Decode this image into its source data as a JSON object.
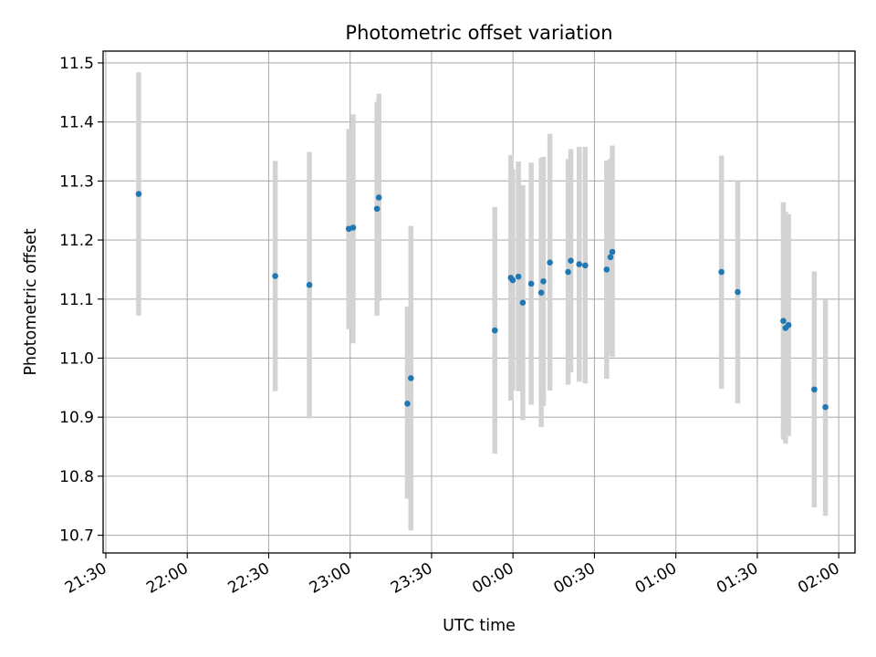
{
  "chart_data": {
    "type": "scatter",
    "title": "Photometric offset variation",
    "xlabel": "UTC time",
    "ylabel": "Photometric offset",
    "x_unit": "minutes since 21:30 UTC",
    "xlim": [
      -1,
      276
    ],
    "ylim": [
      10.67,
      11.52
    ],
    "grid": true,
    "x_ticks": [
      {
        "value": 0,
        "label": "21:30"
      },
      {
        "value": 30,
        "label": "22:00"
      },
      {
        "value": 60,
        "label": "22:30"
      },
      {
        "value": 90,
        "label": "23:00"
      },
      {
        "value": 120,
        "label": "23:30"
      },
      {
        "value": 150,
        "label": "00:00"
      },
      {
        "value": 180,
        "label": "00:30"
      },
      {
        "value": 210,
        "label": "01:00"
      },
      {
        "value": 240,
        "label": "01:30"
      },
      {
        "value": 270,
        "label": "02:00"
      }
    ],
    "y_ticks": [
      {
        "value": 10.7,
        "label": "10.7"
      },
      {
        "value": 10.8,
        "label": "10.8"
      },
      {
        "value": 10.9,
        "label": "10.9"
      },
      {
        "value": 11.0,
        "label": "11.0"
      },
      {
        "value": 11.1,
        "label": "11.1"
      },
      {
        "value": 11.2,
        "label": "11.2"
      },
      {
        "value": 11.3,
        "label": "11.3"
      },
      {
        "value": 11.4,
        "label": "11.4"
      },
      {
        "value": 11.5,
        "label": "11.5"
      }
    ],
    "point_color": "#1f77b4",
    "errorbar_color": "#d3d3d3",
    "series": [
      {
        "points": [
          {
            "x": 12.1,
            "y": 11.278,
            "lo": 11.072,
            "hi": 11.484
          },
          {
            "x": 62.4,
            "y": 11.139,
            "lo": 10.944,
            "hi": 11.334
          },
          {
            "x": 75.0,
            "y": 11.124,
            "lo": 10.898,
            "hi": 11.349
          },
          {
            "x": 89.5,
            "y": 11.219,
            "lo": 11.049,
            "hi": 11.388
          },
          {
            "x": 91.1,
            "y": 11.221,
            "lo": 11.025,
            "hi": 11.413
          },
          {
            "x": 99.9,
            "y": 11.253,
            "lo": 11.072,
            "hi": 11.434
          },
          {
            "x": 100.6,
            "y": 11.272,
            "lo": 11.097,
            "hi": 11.448
          },
          {
            "x": 111.1,
            "y": 10.923,
            "lo": 10.762,
            "hi": 11.087
          },
          {
            "x": 112.4,
            "y": 10.966,
            "lo": 10.708,
            "hi": 11.224
          },
          {
            "x": 143.3,
            "y": 11.047,
            "lo": 10.838,
            "hi": 11.256
          },
          {
            "x": 149.2,
            "y": 11.136,
            "lo": 10.928,
            "hi": 11.344
          },
          {
            "x": 149.9,
            "y": 11.132,
            "lo": 10.945,
            "hi": 11.32
          },
          {
            "x": 152.0,
            "y": 11.138,
            "lo": 10.944,
            "hi": 11.333
          },
          {
            "x": 153.6,
            "y": 11.094,
            "lo": 10.895,
            "hi": 11.293
          },
          {
            "x": 156.7,
            "y": 11.126,
            "lo": 10.921,
            "hi": 11.331
          },
          {
            "x": 160.4,
            "y": 11.111,
            "lo": 10.883,
            "hi": 11.339
          },
          {
            "x": 161.2,
            "y": 11.13,
            "lo": 10.919,
            "hi": 11.341
          },
          {
            "x": 163.6,
            "y": 11.162,
            "lo": 10.945,
            "hi": 11.38
          },
          {
            "x": 170.3,
            "y": 11.146,
            "lo": 10.955,
            "hi": 11.337
          },
          {
            "x": 171.3,
            "y": 11.165,
            "lo": 10.976,
            "hi": 11.354
          },
          {
            "x": 174.4,
            "y": 11.159,
            "lo": 10.96,
            "hi": 11.358
          },
          {
            "x": 176.6,
            "y": 11.157,
            "lo": 10.957,
            "hi": 11.358
          },
          {
            "x": 184.5,
            "y": 11.15,
            "lo": 10.965,
            "hi": 11.335
          },
          {
            "x": 185.9,
            "y": 11.171,
            "lo": 11.006,
            "hi": 11.337
          },
          {
            "x": 186.6,
            "y": 11.18,
            "lo": 11.002,
            "hi": 11.36
          },
          {
            "x": 226.8,
            "y": 11.146,
            "lo": 10.948,
            "hi": 11.343
          },
          {
            "x": 232.8,
            "y": 11.112,
            "lo": 10.923,
            "hi": 11.3
          },
          {
            "x": 249.6,
            "y": 11.063,
            "lo": 10.862,
            "hi": 11.264
          },
          {
            "x": 250.4,
            "y": 11.051,
            "lo": 10.855,
            "hi": 11.248
          },
          {
            "x": 251.5,
            "y": 11.056,
            "lo": 10.868,
            "hi": 11.244
          },
          {
            "x": 261.0,
            "y": 10.947,
            "lo": 10.747,
            "hi": 11.147
          },
          {
            "x": 265.1,
            "y": 10.917,
            "lo": 10.733,
            "hi": 11.1
          }
        ]
      }
    ]
  }
}
